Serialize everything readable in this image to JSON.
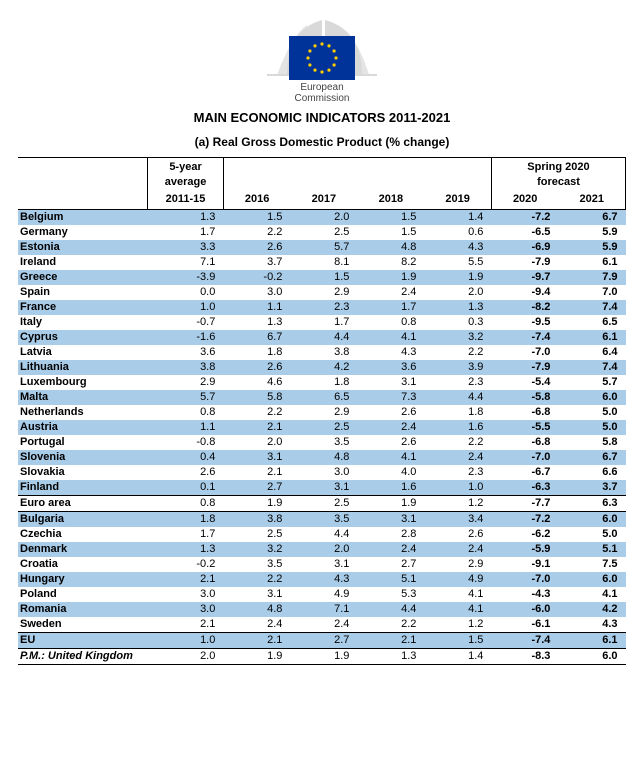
{
  "logo_label_line1": "European",
  "logo_label_line2": "Commission",
  "title": "MAIN ECONOMIC INDICATORS 2011-2021",
  "subtitle": "(a) Real Gross Domestic Product (% change)",
  "header": {
    "group_avg": "5-year average",
    "group_forecast": "Spring 2020 forecast",
    "avg_years": "2011-15",
    "years": [
      "2016",
      "2017",
      "2018",
      "2019",
      "2020",
      "2021"
    ]
  },
  "colors": {
    "stripe": "#a9cce9",
    "flag_bg": "#003399",
    "flag_star": "#ffcc00",
    "building": "#d9d9d9",
    "text": "#000000",
    "bg": "#ffffff"
  },
  "rows": [
    {
      "name": "Belgium",
      "avg": "1.3",
      "v": [
        "1.5",
        "2.0",
        "1.5",
        "1.4",
        "-7.2",
        "6.7"
      ],
      "stripe": true
    },
    {
      "name": "Germany",
      "avg": "1.7",
      "v": [
        "2.2",
        "2.5",
        "1.5",
        "0.6",
        "-6.5",
        "5.9"
      ],
      "stripe": false
    },
    {
      "name": "Estonia",
      "avg": "3.3",
      "v": [
        "2.6",
        "5.7",
        "4.8",
        "4.3",
        "-6.9",
        "5.9"
      ],
      "stripe": true
    },
    {
      "name": "Ireland",
      "avg": "7.1",
      "v": [
        "3.7",
        "8.1",
        "8.2",
        "5.5",
        "-7.9",
        "6.1"
      ],
      "stripe": false
    },
    {
      "name": "Greece",
      "avg": "-3.9",
      "v": [
        "-0.2",
        "1.5",
        "1.9",
        "1.9",
        "-9.7",
        "7.9"
      ],
      "stripe": true
    },
    {
      "name": "Spain",
      "avg": "0.0",
      "v": [
        "3.0",
        "2.9",
        "2.4",
        "2.0",
        "-9.4",
        "7.0"
      ],
      "stripe": false
    },
    {
      "name": "France",
      "avg": "1.0",
      "v": [
        "1.1",
        "2.3",
        "1.7",
        "1.3",
        "-8.2",
        "7.4"
      ],
      "stripe": true
    },
    {
      "name": "Italy",
      "avg": "-0.7",
      "v": [
        "1.3",
        "1.7",
        "0.8",
        "0.3",
        "-9.5",
        "6.5"
      ],
      "stripe": false
    },
    {
      "name": "Cyprus",
      "avg": "-1.6",
      "v": [
        "6.7",
        "4.4",
        "4.1",
        "3.2",
        "-7.4",
        "6.1"
      ],
      "stripe": true
    },
    {
      "name": "Latvia",
      "avg": "3.6",
      "v": [
        "1.8",
        "3.8",
        "4.3",
        "2.2",
        "-7.0",
        "6.4"
      ],
      "stripe": false
    },
    {
      "name": "Lithuania",
      "avg": "3.8",
      "v": [
        "2.6",
        "4.2",
        "3.6",
        "3.9",
        "-7.9",
        "7.4"
      ],
      "stripe": true
    },
    {
      "name": "Luxembourg",
      "avg": "2.9",
      "v": [
        "4.6",
        "1.8",
        "3.1",
        "2.3",
        "-5.4",
        "5.7"
      ],
      "stripe": false
    },
    {
      "name": "Malta",
      "avg": "5.7",
      "v": [
        "5.8",
        "6.5",
        "7.3",
        "4.4",
        "-5.8",
        "6.0"
      ],
      "stripe": true
    },
    {
      "name": "Netherlands",
      "avg": "0.8",
      "v": [
        "2.2",
        "2.9",
        "2.6",
        "1.8",
        "-6.8",
        "5.0"
      ],
      "stripe": false
    },
    {
      "name": "Austria",
      "avg": "1.1",
      "v": [
        "2.1",
        "2.5",
        "2.4",
        "1.6",
        "-5.5",
        "5.0"
      ],
      "stripe": true
    },
    {
      "name": "Portugal",
      "avg": "-0.8",
      "v": [
        "2.0",
        "3.5",
        "2.6",
        "2.2",
        "-6.8",
        "5.8"
      ],
      "stripe": false
    },
    {
      "name": "Slovenia",
      "avg": "0.4",
      "v": [
        "3.1",
        "4.8",
        "4.1",
        "2.4",
        "-7.0",
        "6.7"
      ],
      "stripe": true
    },
    {
      "name": "Slovakia",
      "avg": "2.6",
      "v": [
        "2.1",
        "3.0",
        "4.0",
        "2.3",
        "-6.7",
        "6.6"
      ],
      "stripe": false
    },
    {
      "name": "Finland",
      "avg": "0.1",
      "v": [
        "2.7",
        "3.1",
        "1.6",
        "1.0",
        "-6.3",
        "3.7"
      ],
      "stripe": true
    },
    {
      "name": "Euro area",
      "avg": "0.8",
      "v": [
        "1.9",
        "2.5",
        "1.9",
        "1.2",
        "-7.7",
        "6.3"
      ],
      "stripe": false,
      "section": true
    },
    {
      "name": "Bulgaria",
      "avg": "1.8",
      "v": [
        "3.8",
        "3.5",
        "3.1",
        "3.4",
        "-7.2",
        "6.0"
      ],
      "stripe": true,
      "section": true
    },
    {
      "name": "Czechia",
      "avg": "1.7",
      "v": [
        "2.5",
        "4.4",
        "2.8",
        "2.6",
        "-6.2",
        "5.0"
      ],
      "stripe": false
    },
    {
      "name": "Denmark",
      "avg": "1.3",
      "v": [
        "3.2",
        "2.0",
        "2.4",
        "2.4",
        "-5.9",
        "5.1"
      ],
      "stripe": true
    },
    {
      "name": "Croatia",
      "avg": "-0.2",
      "v": [
        "3.5",
        "3.1",
        "2.7",
        "2.9",
        "-9.1",
        "7.5"
      ],
      "stripe": false
    },
    {
      "name": "Hungary",
      "avg": "2.1",
      "v": [
        "2.2",
        "4.3",
        "5.1",
        "4.9",
        "-7.0",
        "6.0"
      ],
      "stripe": true
    },
    {
      "name": "Poland",
      "avg": "3.0",
      "v": [
        "3.1",
        "4.9",
        "5.3",
        "4.1",
        "-4.3",
        "4.1"
      ],
      "stripe": false
    },
    {
      "name": "Romania",
      "avg": "3.0",
      "v": [
        "4.8",
        "7.1",
        "4.4",
        "4.1",
        "-6.0",
        "4.2"
      ],
      "stripe": true
    },
    {
      "name": "Sweden",
      "avg": "2.1",
      "v": [
        "2.4",
        "2.4",
        "2.2",
        "1.2",
        "-6.1",
        "4.3"
      ],
      "stripe": false
    },
    {
      "name": "EU",
      "avg": "1.0",
      "v": [
        "2.1",
        "2.7",
        "2.1",
        "1.5",
        "-7.4",
        "6.1"
      ],
      "stripe": true,
      "section": true
    },
    {
      "name": "P.M.: United Kingdom",
      "avg": "2.0",
      "v": [
        "1.9",
        "1.9",
        "1.3",
        "1.4",
        "-8.3",
        "6.0"
      ],
      "stripe": false,
      "section": true,
      "italic": true,
      "last": true
    }
  ]
}
